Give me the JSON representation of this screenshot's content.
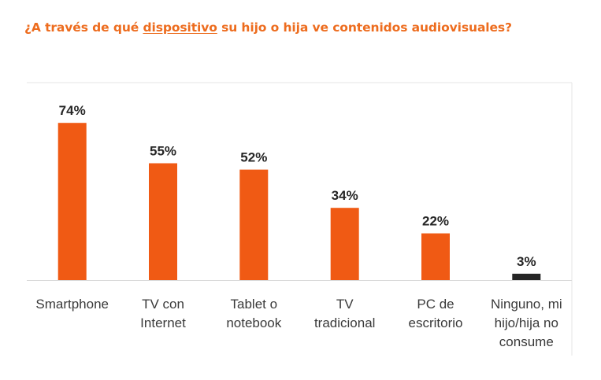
{
  "title": {
    "before": "¿A través de qué ",
    "keyword": "dispositivo",
    "after": " su hijo o hija ve contenidos audiovisuales?"
  },
  "chart_data": {
    "type": "bar",
    "title": "¿A través de qué dispositivo su hijo o hija ve contenidos audiovisuales?",
    "categories": [
      "Smartphone",
      "TV con Internet",
      "Tablet o notebook",
      "TV tradicional",
      "PC de escritorio",
      "Ninguno, mi hijo/hija no consume"
    ],
    "category_lines": [
      [
        "Smartphone"
      ],
      [
        "TV con",
        "Internet"
      ],
      [
        "Tablet o",
        "notebook"
      ],
      [
        "TV",
        "tradicional"
      ],
      [
        "PC de",
        "escritorio"
      ],
      [
        "Ninguno, mi",
        "hijo/hija no",
        "consume"
      ]
    ],
    "values": [
      74,
      55,
      52,
      34,
      22,
      3
    ],
    "value_labels": [
      "74%",
      "55%",
      "52%",
      "34%",
      "22%",
      "3%"
    ],
    "unit": "%",
    "ylim": [
      0,
      80
    ],
    "xlabel": "",
    "ylabel": "",
    "grid": false,
    "legend": "none",
    "colors": {
      "bar": "#f05a14",
      "bar_highlight": "#262626",
      "title": "#ed6c1e",
      "baseline": "#d9d9d9",
      "frame": "#e6e6e6"
    }
  }
}
